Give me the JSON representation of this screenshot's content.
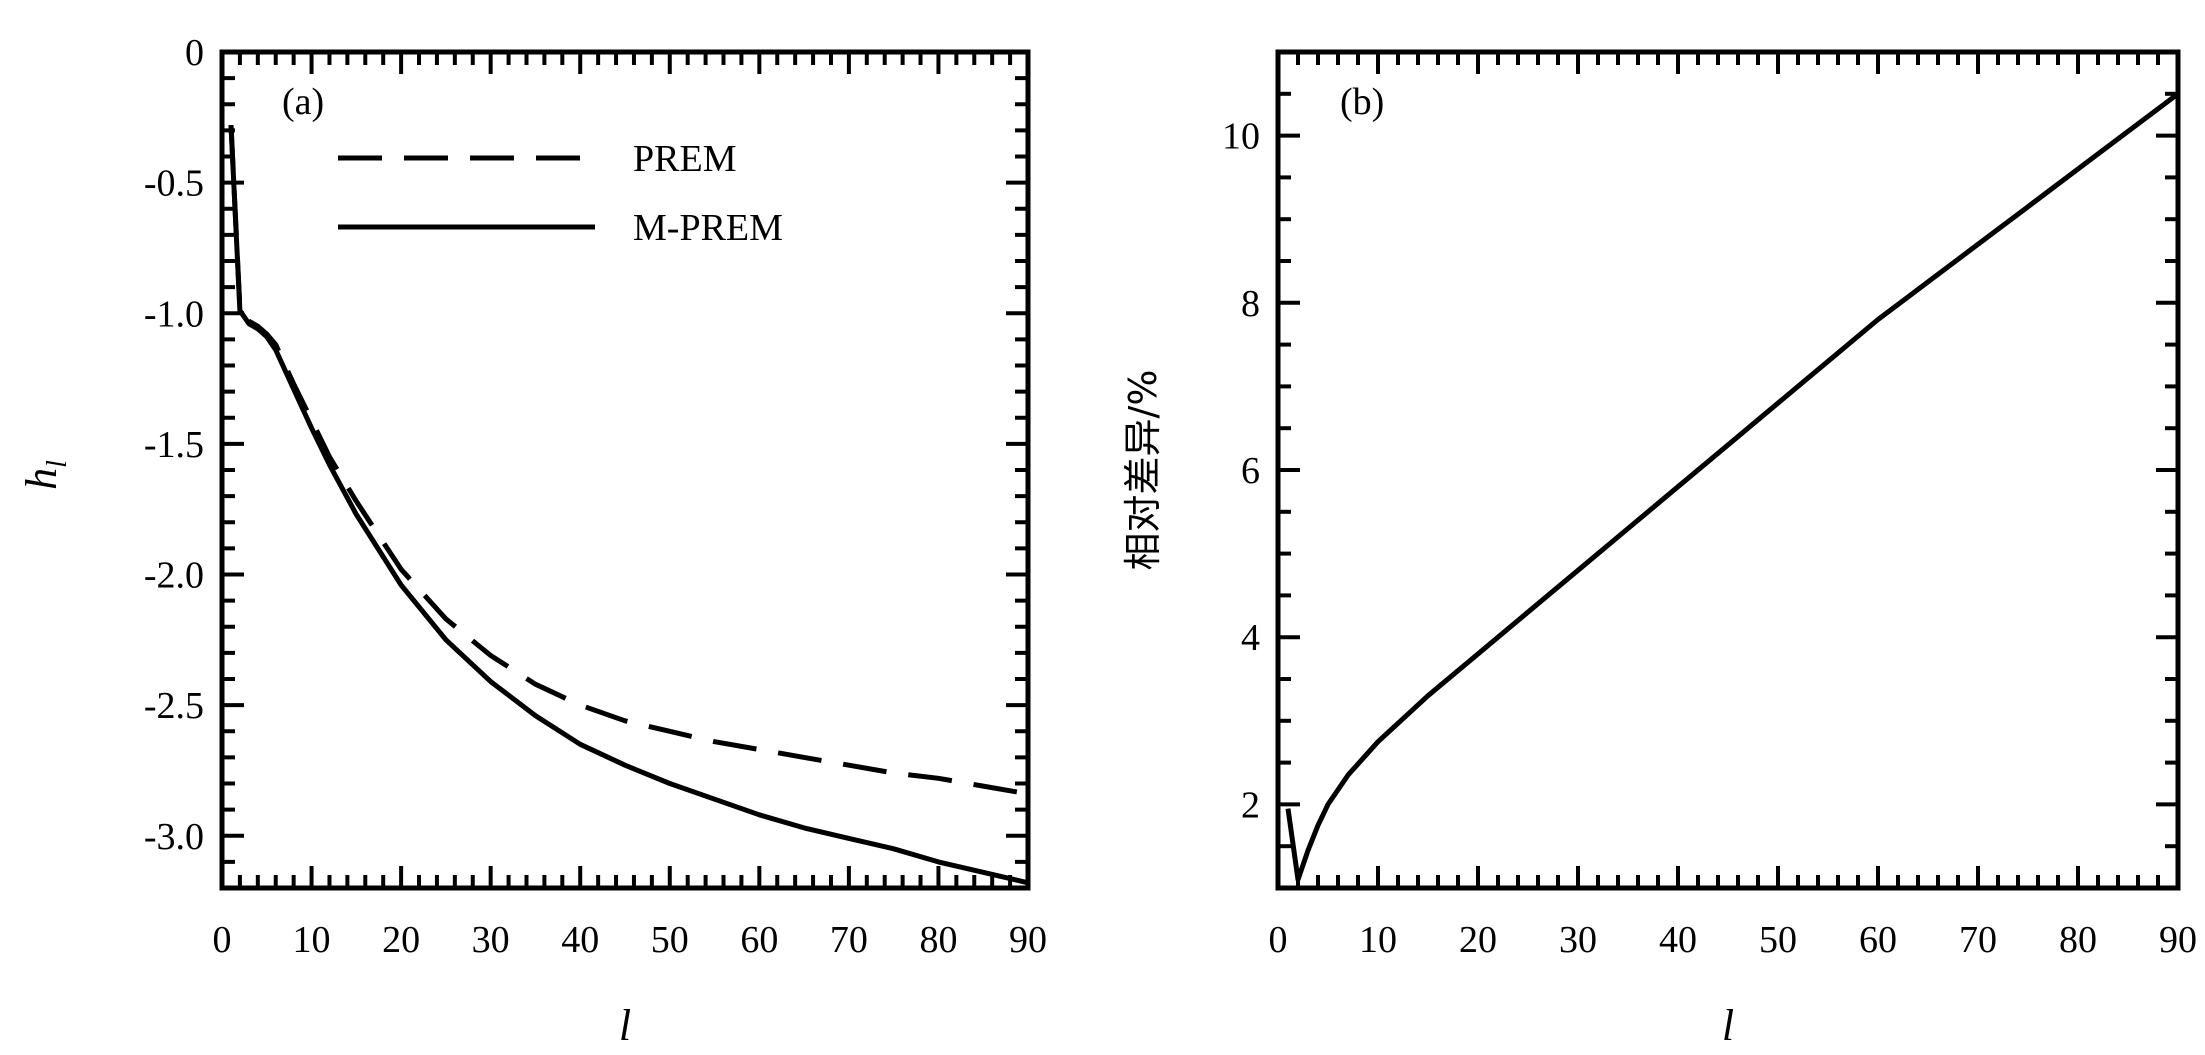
{
  "chart_data": [
    {
      "type": "line",
      "panel_label": "(a)",
      "xlabel": "l",
      "ylabel_main": "h",
      "ylabel_sub": "l",
      "xlim": [
        0,
        90
      ],
      "ylim": [
        -3.2,
        0
      ],
      "xticks": [
        0,
        10,
        20,
        30,
        40,
        50,
        60,
        70,
        80,
        90
      ],
      "yticks": [
        0,
        -0.5,
        -1.0,
        -1.5,
        -2.0,
        -2.5,
        -3.0
      ],
      "ytick_labels": [
        "0",
        "-0.5",
        "-1.0",
        "-1.5",
        "-2.0",
        "-2.5",
        "-3.0"
      ],
      "grid": false,
      "legend_position": "top-center",
      "series": [
        {
          "name": "PREM",
          "style": "dashed",
          "x": [
            1,
            2,
            3,
            4,
            5,
            6,
            8,
            10,
            12,
            15,
            20,
            25,
            30,
            35,
            40,
            45,
            50,
            55,
            60,
            65,
            70,
            75,
            80,
            85,
            90
          ],
          "y": [
            -0.28,
            -0.98,
            -1.03,
            -1.05,
            -1.08,
            -1.12,
            -1.27,
            -1.41,
            -1.55,
            -1.72,
            -1.98,
            -2.17,
            -2.31,
            -2.42,
            -2.5,
            -2.56,
            -2.6,
            -2.64,
            -2.67,
            -2.7,
            -2.73,
            -2.76,
            -2.78,
            -2.81,
            -2.84
          ]
        },
        {
          "name": "M-PREM",
          "style": "solid",
          "x": [
            1,
            2,
            3,
            4,
            5,
            6,
            8,
            10,
            12,
            15,
            20,
            25,
            30,
            35,
            40,
            45,
            50,
            55,
            60,
            65,
            70,
            75,
            80,
            85,
            90
          ],
          "y": [
            -0.28,
            -0.99,
            -1.04,
            -1.06,
            -1.09,
            -1.14,
            -1.29,
            -1.44,
            -1.58,
            -1.77,
            -2.04,
            -2.25,
            -2.41,
            -2.54,
            -2.65,
            -2.73,
            -2.8,
            -2.86,
            -2.92,
            -2.97,
            -3.01,
            -3.05,
            -3.1,
            -3.14,
            -3.18
          ]
        }
      ]
    },
    {
      "type": "line",
      "panel_label": "(b)",
      "xlabel": "l",
      "ylabel": "相对差异/%",
      "xlim": [
        0,
        90
      ],
      "ylim": [
        1,
        11
      ],
      "xticks": [
        0,
        10,
        20,
        30,
        40,
        50,
        60,
        70,
        80,
        90
      ],
      "yticks": [
        2,
        4,
        6,
        8,
        10
      ],
      "ytick_labels": [
        "2",
        "4",
        "6",
        "8",
        "10"
      ],
      "grid": false,
      "series": [
        {
          "style": "solid",
          "x": [
            1,
            2,
            3,
            4,
            5,
            7,
            10,
            15,
            20,
            25,
            30,
            35,
            40,
            45,
            50,
            55,
            60,
            65,
            70,
            75,
            80,
            85,
            90
          ],
          "y": [
            1.95,
            1.1,
            1.45,
            1.75,
            2.0,
            2.35,
            2.75,
            3.3,
            3.8,
            4.3,
            4.8,
            5.3,
            5.8,
            6.3,
            6.8,
            7.3,
            7.8,
            8.25,
            8.7,
            9.15,
            9.6,
            10.05,
            10.5
          ]
        }
      ]
    }
  ]
}
